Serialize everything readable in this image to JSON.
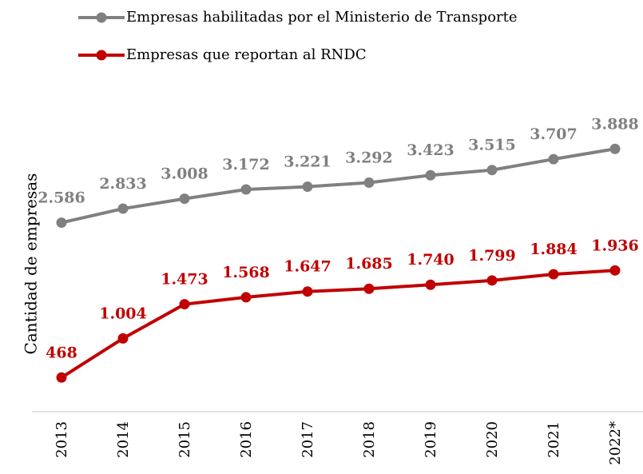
{
  "chart_data": {
    "type": "line",
    "y_label": "Cantidad de empresas",
    "categories": [
      "2013",
      "2014",
      "2015",
      "2016",
      "2017",
      "2018",
      "2019",
      "2020",
      "2021",
      "2022*"
    ],
    "series": [
      {
        "name": "Empresas habilitadas por el Ministerio de Transporte",
        "color": "#808080",
        "values": [
          2586,
          2833,
          3008,
          3172,
          3221,
          3292,
          3423,
          3515,
          3707,
          3888
        ],
        "value_labels": [
          "2.586",
          "2.833",
          "3.008",
          "3.172",
          "3.221",
          "3.292",
          "3.423",
          "3.515",
          "3.707",
          "3.888"
        ]
      },
      {
        "name": "Empresas que reportan al RNDC",
        "color": "#c00000",
        "axis": "y2",
        "values": [
          468,
          1004,
          1473,
          1568,
          1647,
          1685,
          1740,
          1799,
          1884,
          1936
        ],
        "value_labels": [
          "468",
          "1.004",
          "1.473",
          "1.568",
          "1.647",
          "1.685",
          "1.740",
          "1.799",
          "1.884",
          "1.936"
        ]
      }
    ],
    "ylim": [
      -750,
      4400
    ],
    "y2lim": [
      0,
      4000
    ],
    "legend": "top"
  }
}
